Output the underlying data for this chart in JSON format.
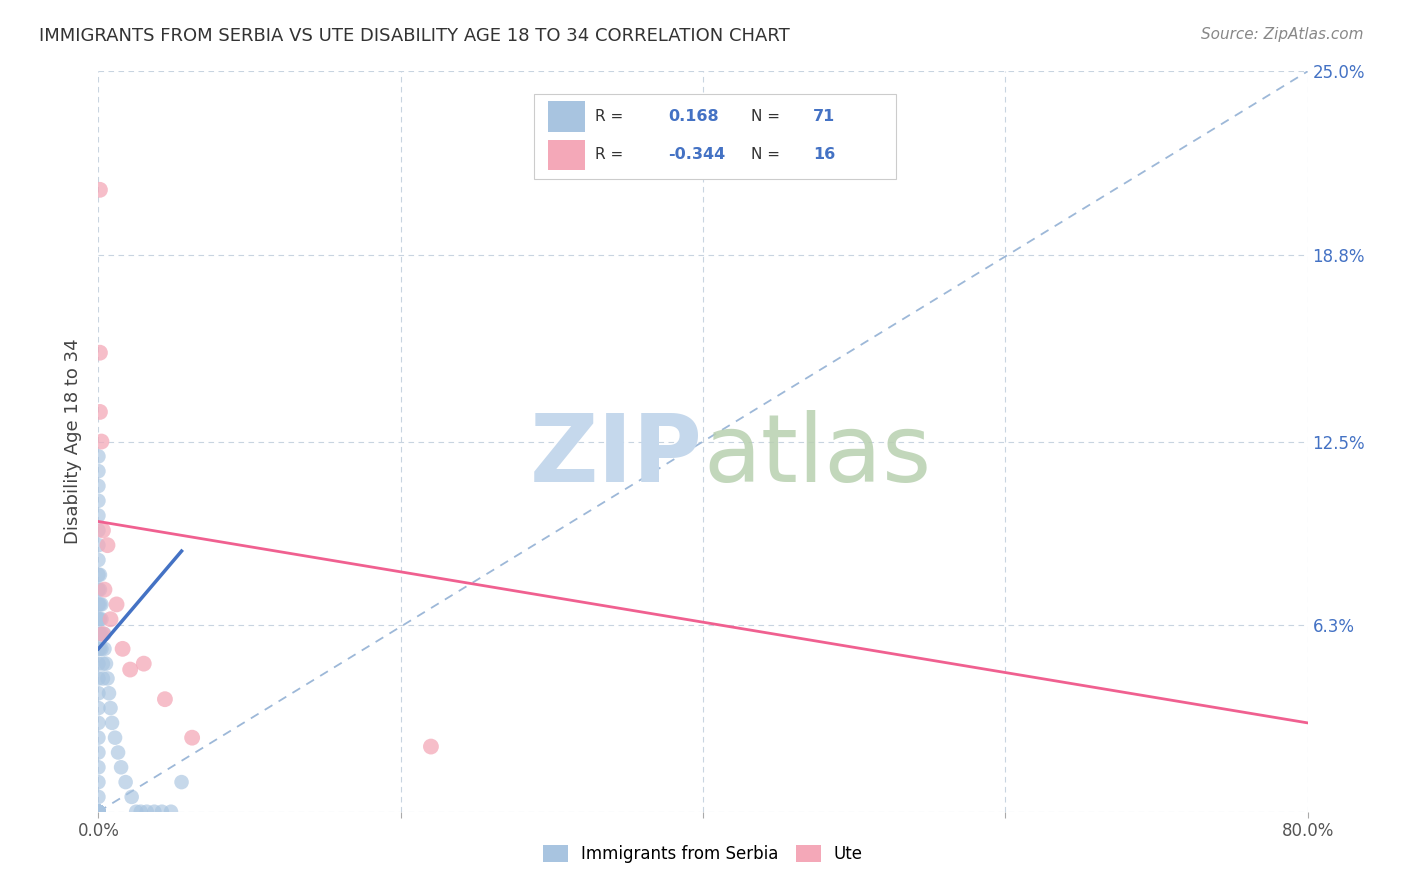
{
  "title": "IMMIGRANTS FROM SERBIA VS UTE DISABILITY AGE 18 TO 34 CORRELATION CHART",
  "source": "Source: ZipAtlas.com",
  "ylabel": "Disability Age 18 to 34",
  "xlim": [
    0,
    0.8
  ],
  "ylim": [
    0,
    0.25
  ],
  "r_serbia": 0.168,
  "n_serbia": 71,
  "r_ute": -0.344,
  "n_ute": 16,
  "serbia_color": "#a8c4e0",
  "ute_color": "#f4a8b8",
  "serbia_line_color": "#4472c4",
  "ute_line_color": "#f06090",
  "dashed_line_color": "#9db8d8",
  "background_color": "#ffffff",
  "grid_color": "#c8d4e0",
  "serbia_points_x": [
    0.0,
    0.0,
    0.0,
    0.0,
    0.0,
    0.0,
    0.0,
    0.0,
    0.0,
    0.0,
    0.0,
    0.0,
    0.0,
    0.0,
    0.0,
    0.0,
    0.0,
    0.0,
    0.0,
    0.0,
    0.0,
    0.0,
    0.0,
    0.0,
    0.0,
    0.0,
    0.0,
    0.0,
    0.0,
    0.0,
    0.0,
    0.0,
    0.0,
    0.0,
    0.0,
    0.0,
    0.0,
    0.0,
    0.0,
    0.0,
    0.001,
    0.001,
    0.001,
    0.001,
    0.001,
    0.001,
    0.002,
    0.002,
    0.002,
    0.002,
    0.003,
    0.003,
    0.004,
    0.004,
    0.005,
    0.006,
    0.007,
    0.008,
    0.009,
    0.011,
    0.013,
    0.015,
    0.018,
    0.022,
    0.025,
    0.028,
    0.032,
    0.037,
    0.042,
    0.048,
    0.055
  ],
  "serbia_points_y": [
    0.12,
    0.115,
    0.11,
    0.105,
    0.1,
    0.095,
    0.09,
    0.085,
    0.08,
    0.075,
    0.07,
    0.065,
    0.06,
    0.055,
    0.05,
    0.045,
    0.04,
    0.035,
    0.03,
    0.025,
    0.02,
    0.015,
    0.01,
    0.005,
    0.0,
    0.0,
    0.0,
    0.0,
    0.0,
    0.0,
    0.0,
    0.0,
    0.0,
    0.0,
    0.0,
    0.0,
    0.0,
    0.0,
    0.0,
    0.0,
    0.08,
    0.075,
    0.07,
    0.065,
    0.06,
    0.055,
    0.07,
    0.065,
    0.06,
    0.055,
    0.05,
    0.045,
    0.06,
    0.055,
    0.05,
    0.045,
    0.04,
    0.035,
    0.03,
    0.025,
    0.02,
    0.015,
    0.01,
    0.005,
    0.0,
    0.0,
    0.0,
    0.0,
    0.0,
    0.0,
    0.01
  ],
  "ute_points_x": [
    0.001,
    0.001,
    0.002,
    0.003,
    0.004,
    0.006,
    0.008,
    0.012,
    0.016,
    0.021,
    0.03,
    0.044,
    0.062,
    0.22,
    0.001,
    0.003
  ],
  "ute_points_y": [
    0.21,
    0.155,
    0.125,
    0.095,
    0.075,
    0.09,
    0.065,
    0.07,
    0.055,
    0.048,
    0.05,
    0.038,
    0.025,
    0.022,
    0.135,
    0.06
  ]
}
